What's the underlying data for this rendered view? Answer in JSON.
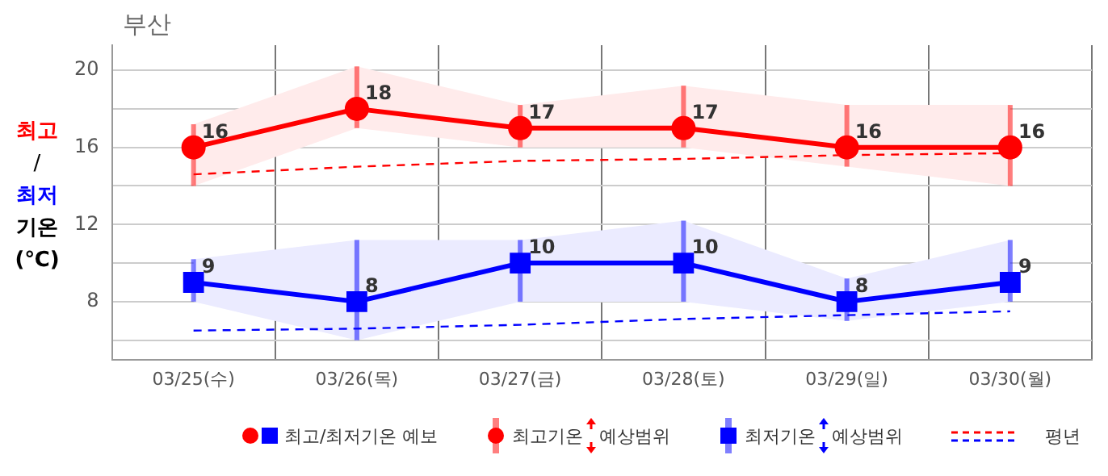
{
  "chart_data": {
    "type": "line",
    "title": "부산",
    "ylabel": "최고/최저 기온 (℃)",
    "categories": [
      "03/25(수)",
      "03/26(목)",
      "03/27(금)",
      "03/28(토)",
      "03/29(일)",
      "03/30(월)"
    ],
    "series": [
      {
        "color": "#ff0000",
        "marker": "circle",
        "line_style": "solid",
        "values": [
          16,
          18,
          17,
          17,
          16,
          16
        ],
        "value_labels": [
          "16",
          "18",
          "17",
          "17",
          "16",
          "16"
        ],
        "errors": [
          [
            14,
            17.2
          ],
          [
            17,
            20.2
          ],
          [
            16,
            18.2
          ],
          [
            16,
            19.2
          ],
          [
            15,
            18.2
          ],
          [
            14,
            18.2
          ]
        ],
        "lower": [
          14,
          17,
          16,
          16,
          15,
          14
        ],
        "upper": [
          17.2,
          20.2,
          18.2,
          19.2,
          18.2,
          18.2
        ]
      },
      {
        "color": "#0000ff",
        "marker": "square",
        "line_style": "solid",
        "values": [
          9,
          8,
          10,
          10,
          8,
          9
        ],
        "value_labels": [
          "9",
          "8",
          "10",
          "10",
          "8",
          "9"
        ],
        "errors": [
          [
            8,
            10.2
          ],
          [
            6,
            11.2
          ],
          [
            8,
            11.2
          ],
          [
            8,
            12.2
          ],
          [
            7,
            9.2
          ],
          [
            8,
            11.2
          ]
        ],
        "lower": [
          8,
          6,
          8,
          8,
          7,
          8
        ],
        "upper": [
          10.2,
          11.2,
          11.2,
          12.2,
          9.2,
          11.2
        ]
      },
      {
        "color": "#ff0000",
        "marker": "none",
        "line_style": "dashed",
        "values": [
          14.6,
          15.0,
          15.3,
          15.4,
          15.6,
          15.7
        ]
      },
      {
        "color": "#0000ff",
        "marker": "none",
        "line_style": "dashed",
        "values": [
          6.5,
          6.6,
          6.8,
          7.1,
          7.3,
          7.5
        ]
      }
    ],
    "ylim": [
      5,
      21.3
    ],
    "yticks": [
      {
        "value": 6,
        "label": null
      },
      8,
      {
        "value": 10,
        "label": null
      },
      12,
      {
        "value": 14,
        "label": null
      },
      16,
      {
        "value": 18,
        "label": null
      },
      20
    ],
    "grid": true,
    "annotations": [
      "최고/최저기온 예보",
      "최고기온 예상범위",
      "최저기온 예상범위",
      "평년"
    ]
  }
}
